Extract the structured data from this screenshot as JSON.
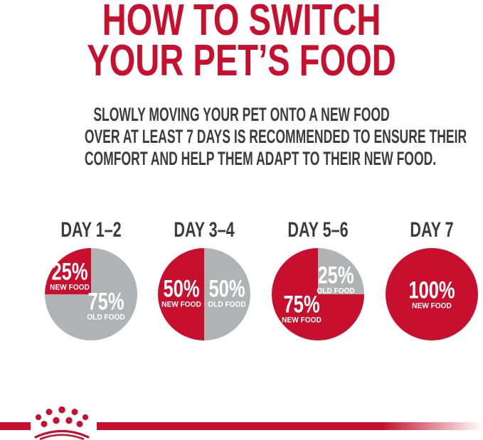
{
  "header": {
    "title_line1": "HOW TO SWITCH",
    "title_line2": "YOUR PET’S FOOD",
    "subtitle_lines": [
      "SLOWLY MOVING YOUR PET ONTO A NEW FOOD",
      "OVER AT LEAST 7 DAYS IS RECOMMENDED TO ENSURE THEIR",
      "COMFORT AND HELP THEM ADAPT TO THEIR NEW FOOD."
    ]
  },
  "colors": {
    "brand_red": "#C8102E",
    "old_food_gray": "#B1B2B4",
    "text_charcoal": "#3C3C3E",
    "label_white": "#FFFFFF"
  },
  "footer": {
    "logo_icon": "royal-canin-crown-logo"
  },
  "chart_data": {
    "type": "pie",
    "title": "HOW TO SWITCH YOUR PET’S FOOD",
    "subtitle": "SLOWLY MOVING YOUR PET ONTO A NEW FOOD OVER AT LEAST 7 DAYS IS RECOMMENDED TO ENSURE THEIR COMFORT AND HELP THEM ADAPT TO THEIR NEW FOOD.",
    "legend": "none",
    "value_unit": "%",
    "charts": [
      {
        "label": "DAY 1–2",
        "segments": [
          {
            "name": "NEW FOOD",
            "value": 25,
            "color": "brand_red",
            "start_angle": 270,
            "label_offset": [
              -0.46,
              -0.38
            ]
          },
          {
            "name": "OLD FOOD",
            "value": 75,
            "color": "old_food_gray",
            "start_angle": 0,
            "label_offset": [
              0.33,
              0.26
            ]
          }
        ]
      },
      {
        "label": "DAY 3–4",
        "segments": [
          {
            "name": "NEW FOOD",
            "value": 50,
            "color": "brand_red",
            "start_angle": 180,
            "label_offset": [
              -0.49,
              -0.02
            ]
          },
          {
            "name": "OLD FOOD",
            "value": 50,
            "color": "old_food_gray",
            "start_angle": 0,
            "label_offset": [
              0.49,
              -0.02
            ]
          }
        ]
      },
      {
        "label": "DAY 5–6",
        "segments": [
          {
            "name": "NEW FOOD",
            "value": 75,
            "color": "brand_red",
            "start_angle": 90,
            "label_offset": [
              -0.36,
              0.33
            ]
          },
          {
            "name": "OLD FOOD",
            "value": 25,
            "color": "old_food_gray",
            "start_angle": 0,
            "label_offset": [
              0.39,
              -0.31
            ]
          }
        ]
      },
      {
        "label": "DAY 7",
        "segments": [
          {
            "name": "NEW FOOD",
            "value": 100,
            "color": "brand_red",
            "start_angle": 0,
            "label_offset": [
              0,
              0.01
            ]
          }
        ]
      }
    ]
  }
}
